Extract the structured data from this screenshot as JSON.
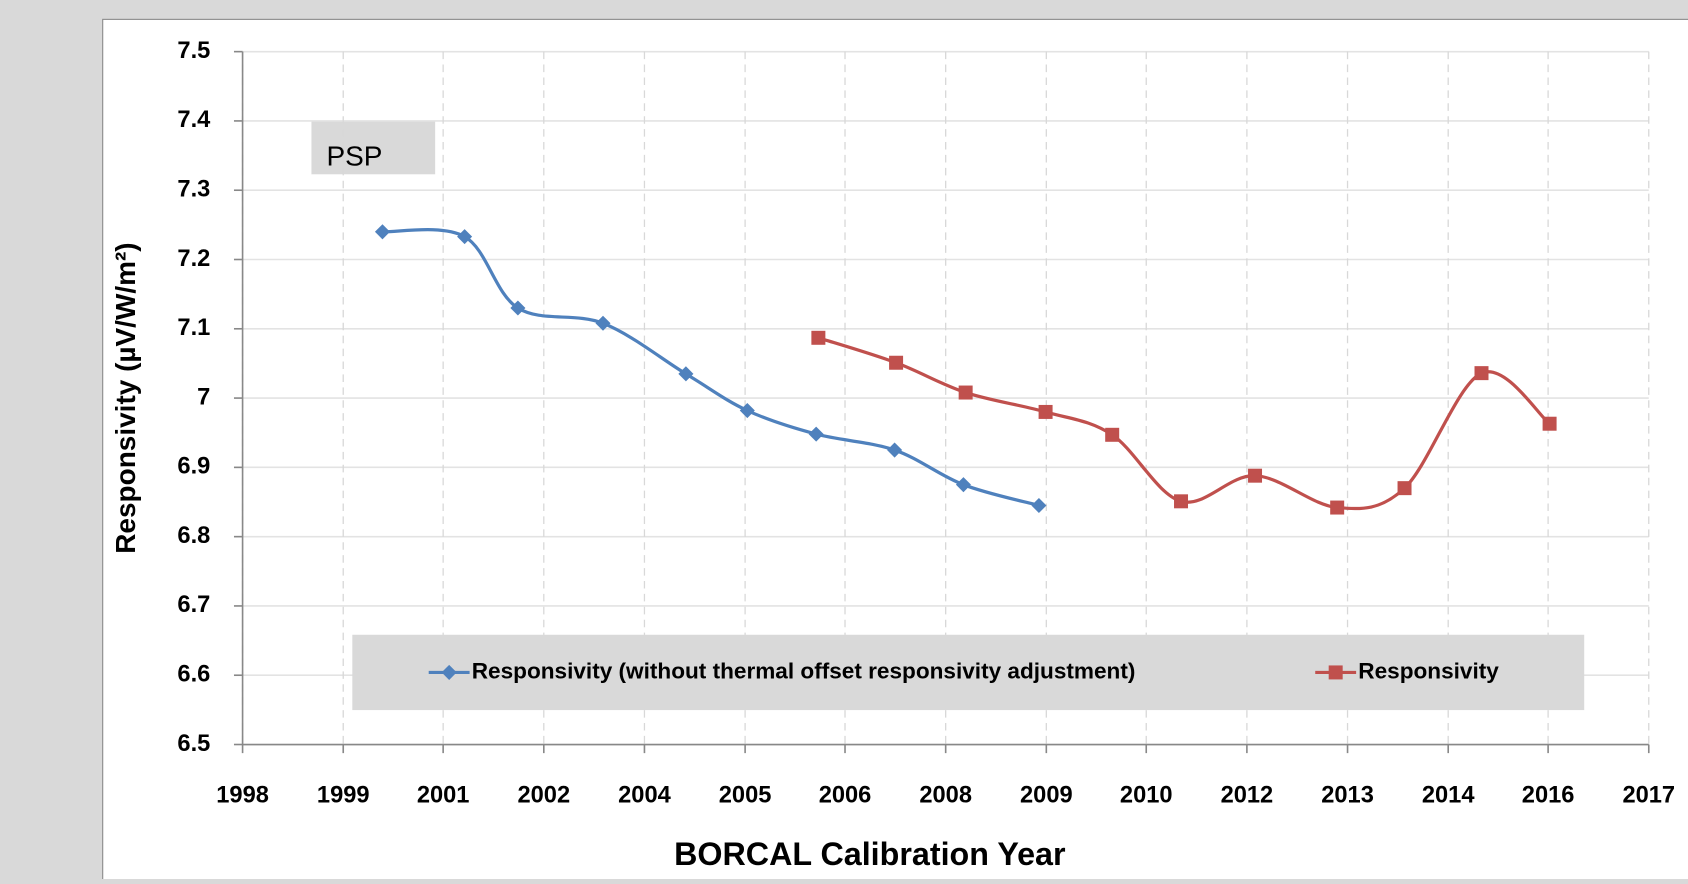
{
  "chart_data": {
    "type": "line",
    "annotation": "PSP",
    "xlabel": "BORCAL Calibration Year",
    "ylabel": "Responsivity (µV/W/m²)",
    "xlim": [
      1998.6,
      2017.6
    ],
    "xticks": [
      {
        "value": 1998.6,
        "label": "1998"
      },
      {
        "value": 1999.96,
        "label": "1999"
      },
      {
        "value": 2001.31,
        "label": "2001"
      },
      {
        "value": 2002.67,
        "label": "2002"
      },
      {
        "value": 2004.03,
        "label": "2004"
      },
      {
        "value": 2005.39,
        "label": "2005"
      },
      {
        "value": 2006.74,
        "label": "2006"
      },
      {
        "value": 2008.1,
        "label": "2008"
      },
      {
        "value": 2009.46,
        "label": "2009"
      },
      {
        "value": 2010.81,
        "label": "2010"
      },
      {
        "value": 2012.17,
        "label": "2012"
      },
      {
        "value": 2013.53,
        "label": "2013"
      },
      {
        "value": 2014.89,
        "label": "2014"
      },
      {
        "value": 2016.24,
        "label": "2016"
      },
      {
        "value": 2017.6,
        "label": "2017"
      }
    ],
    "ylim": [
      6.5,
      7.5
    ],
    "yticks": [
      6.5,
      6.6,
      6.7,
      6.8,
      6.9,
      7,
      7.1,
      7.2,
      7.3,
      7.4,
      7.5
    ],
    "grid": true,
    "legend": "bottom",
    "series": [
      {
        "name": "Responsivity (without thermal offset responsivity adjustment)",
        "color": "#4f81bd",
        "marker": "diamond",
        "x": [
          2000.49,
          2001.6,
          2002.32,
          2003.47,
          2004.59,
          2005.42,
          2006.35,
          2007.41,
          2008.34,
          2009.36
        ],
        "values": [
          7.24,
          7.233,
          7.13,
          7.108,
          7.035,
          6.982,
          6.948,
          6.925,
          6.875,
          6.845
        ]
      },
      {
        "name": "Responsivity",
        "color": "#c0504d",
        "marker": "square",
        "x": [
          2006.38,
          2007.43,
          2008.37,
          2009.45,
          2010.35,
          2011.28,
          2012.28,
          2013.39,
          2014.3,
          2015.34,
          2016.26
        ],
        "values": [
          7.087,
          7.051,
          7.008,
          6.98,
          6.947,
          6.851,
          6.888,
          6.842,
          6.87,
          7.036,
          6.963
        ]
      }
    ]
  }
}
